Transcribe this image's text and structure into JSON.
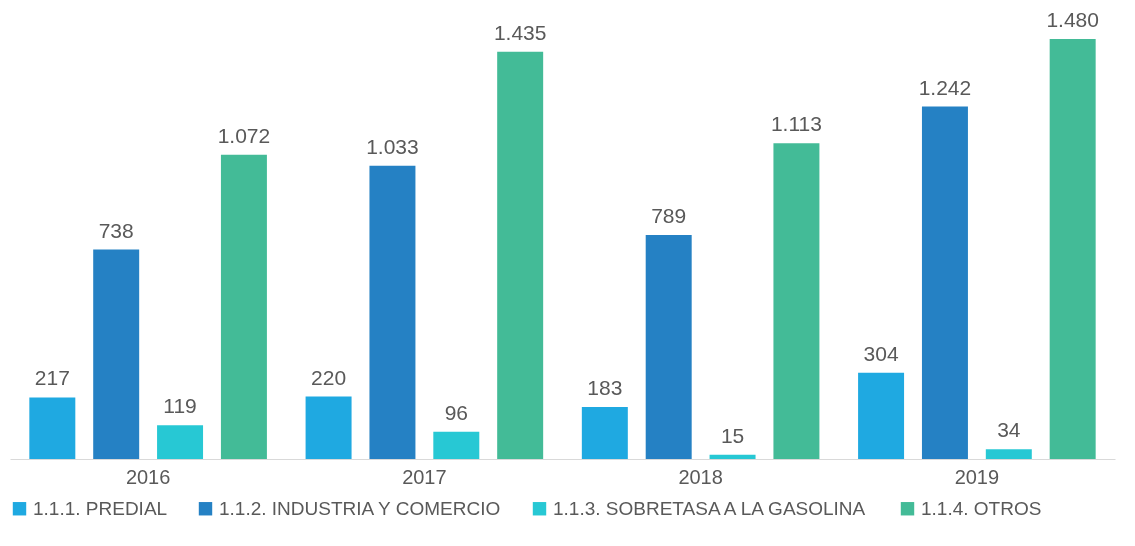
{
  "chart_data": {
    "type": "bar",
    "categories": [
      "2016",
      "2017",
      "2018",
      "2019"
    ],
    "series": [
      {
        "name": "1.1.1. PREDIAL",
        "color": "#1fa9e1",
        "values": [
          217,
          220,
          183,
          304
        ],
        "value_labels": [
          "217",
          "220",
          "183",
          "304"
        ]
      },
      {
        "name": "1.1.2. INDUSTRIA Y COMERCIO",
        "color": "#2581c4",
        "values": [
          738,
          1033,
          789,
          1242
        ],
        "value_labels": [
          "738",
          "1.033",
          "789",
          "1.242"
        ]
      },
      {
        "name": "1.1.3. SOBRETASA A LA GASOLINA",
        "color": "#27c8d4",
        "values": [
          119,
          96,
          15,
          34
        ],
        "value_labels": [
          "119",
          "96",
          "15",
          "34"
        ]
      },
      {
        "name": "1.1.4. OTROS",
        "color": "#43bb97",
        "values": [
          1072,
          1435,
          1113,
          1480
        ],
        "value_labels": [
          "1.072",
          "1.435",
          "1.113",
          "1.480"
        ]
      }
    ],
    "legend": "bottom",
    "grid": false
  }
}
